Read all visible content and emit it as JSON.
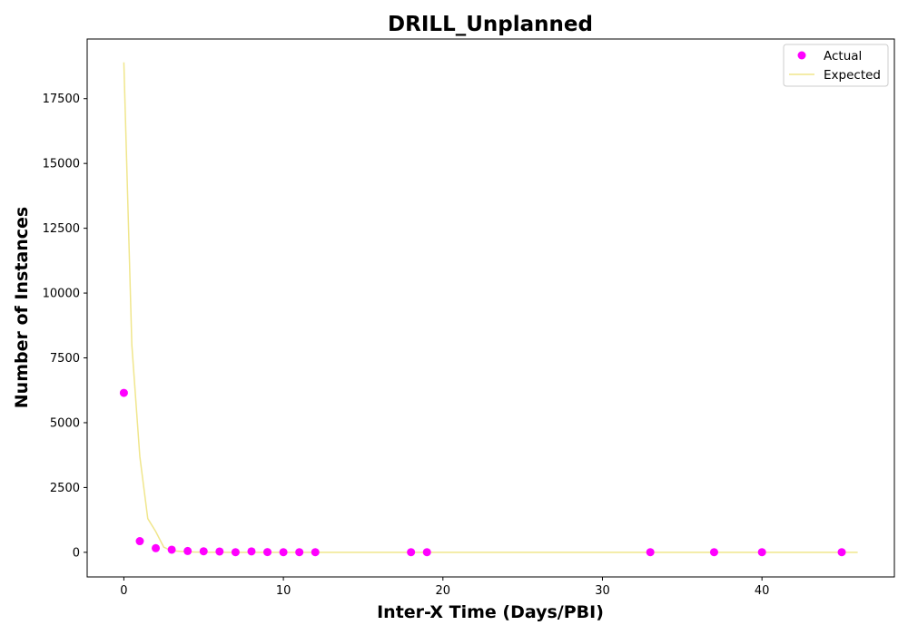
{
  "chart_data": {
    "type": "scatter",
    "title": "DRILL_Unplanned",
    "xlabel": "Inter-X Time (Days/PBI)",
    "ylabel": "Number of Instances",
    "xlim": [
      -2.3,
      48.3
    ],
    "ylim": [
      -950,
      19800
    ],
    "xticks": [
      0,
      10,
      20,
      30,
      40
    ],
    "yticks": [
      0,
      2500,
      5000,
      7500,
      10000,
      12500,
      15000,
      17500
    ],
    "grid": false,
    "legend_position": "top-right",
    "series": [
      {
        "name": "Actual",
        "kind": "scatter",
        "color": "#ff00ff",
        "x": [
          0,
          1,
          2,
          3,
          4,
          5,
          6,
          7,
          8,
          9,
          10,
          11,
          12,
          18,
          19,
          33,
          37,
          40,
          45
        ],
        "y": [
          6150,
          430,
          160,
          100,
          50,
          40,
          30,
          5,
          35,
          10,
          5,
          5,
          5,
          5,
          5,
          5,
          5,
          5,
          5
        ]
      },
      {
        "name": "Expected",
        "kind": "line",
        "color": "#f0e68c",
        "x": [
          0,
          0.5,
          1,
          1.5,
          2,
          2.5,
          3,
          4,
          5,
          6,
          8,
          10,
          12,
          15,
          20,
          25,
          30,
          35,
          40,
          46
        ],
        "y": [
          18900,
          8000,
          3700,
          1300,
          800,
          200,
          60,
          15,
          5,
          2,
          0,
          0,
          0,
          0,
          0,
          0,
          0,
          0,
          0,
          0
        ]
      }
    ]
  }
}
